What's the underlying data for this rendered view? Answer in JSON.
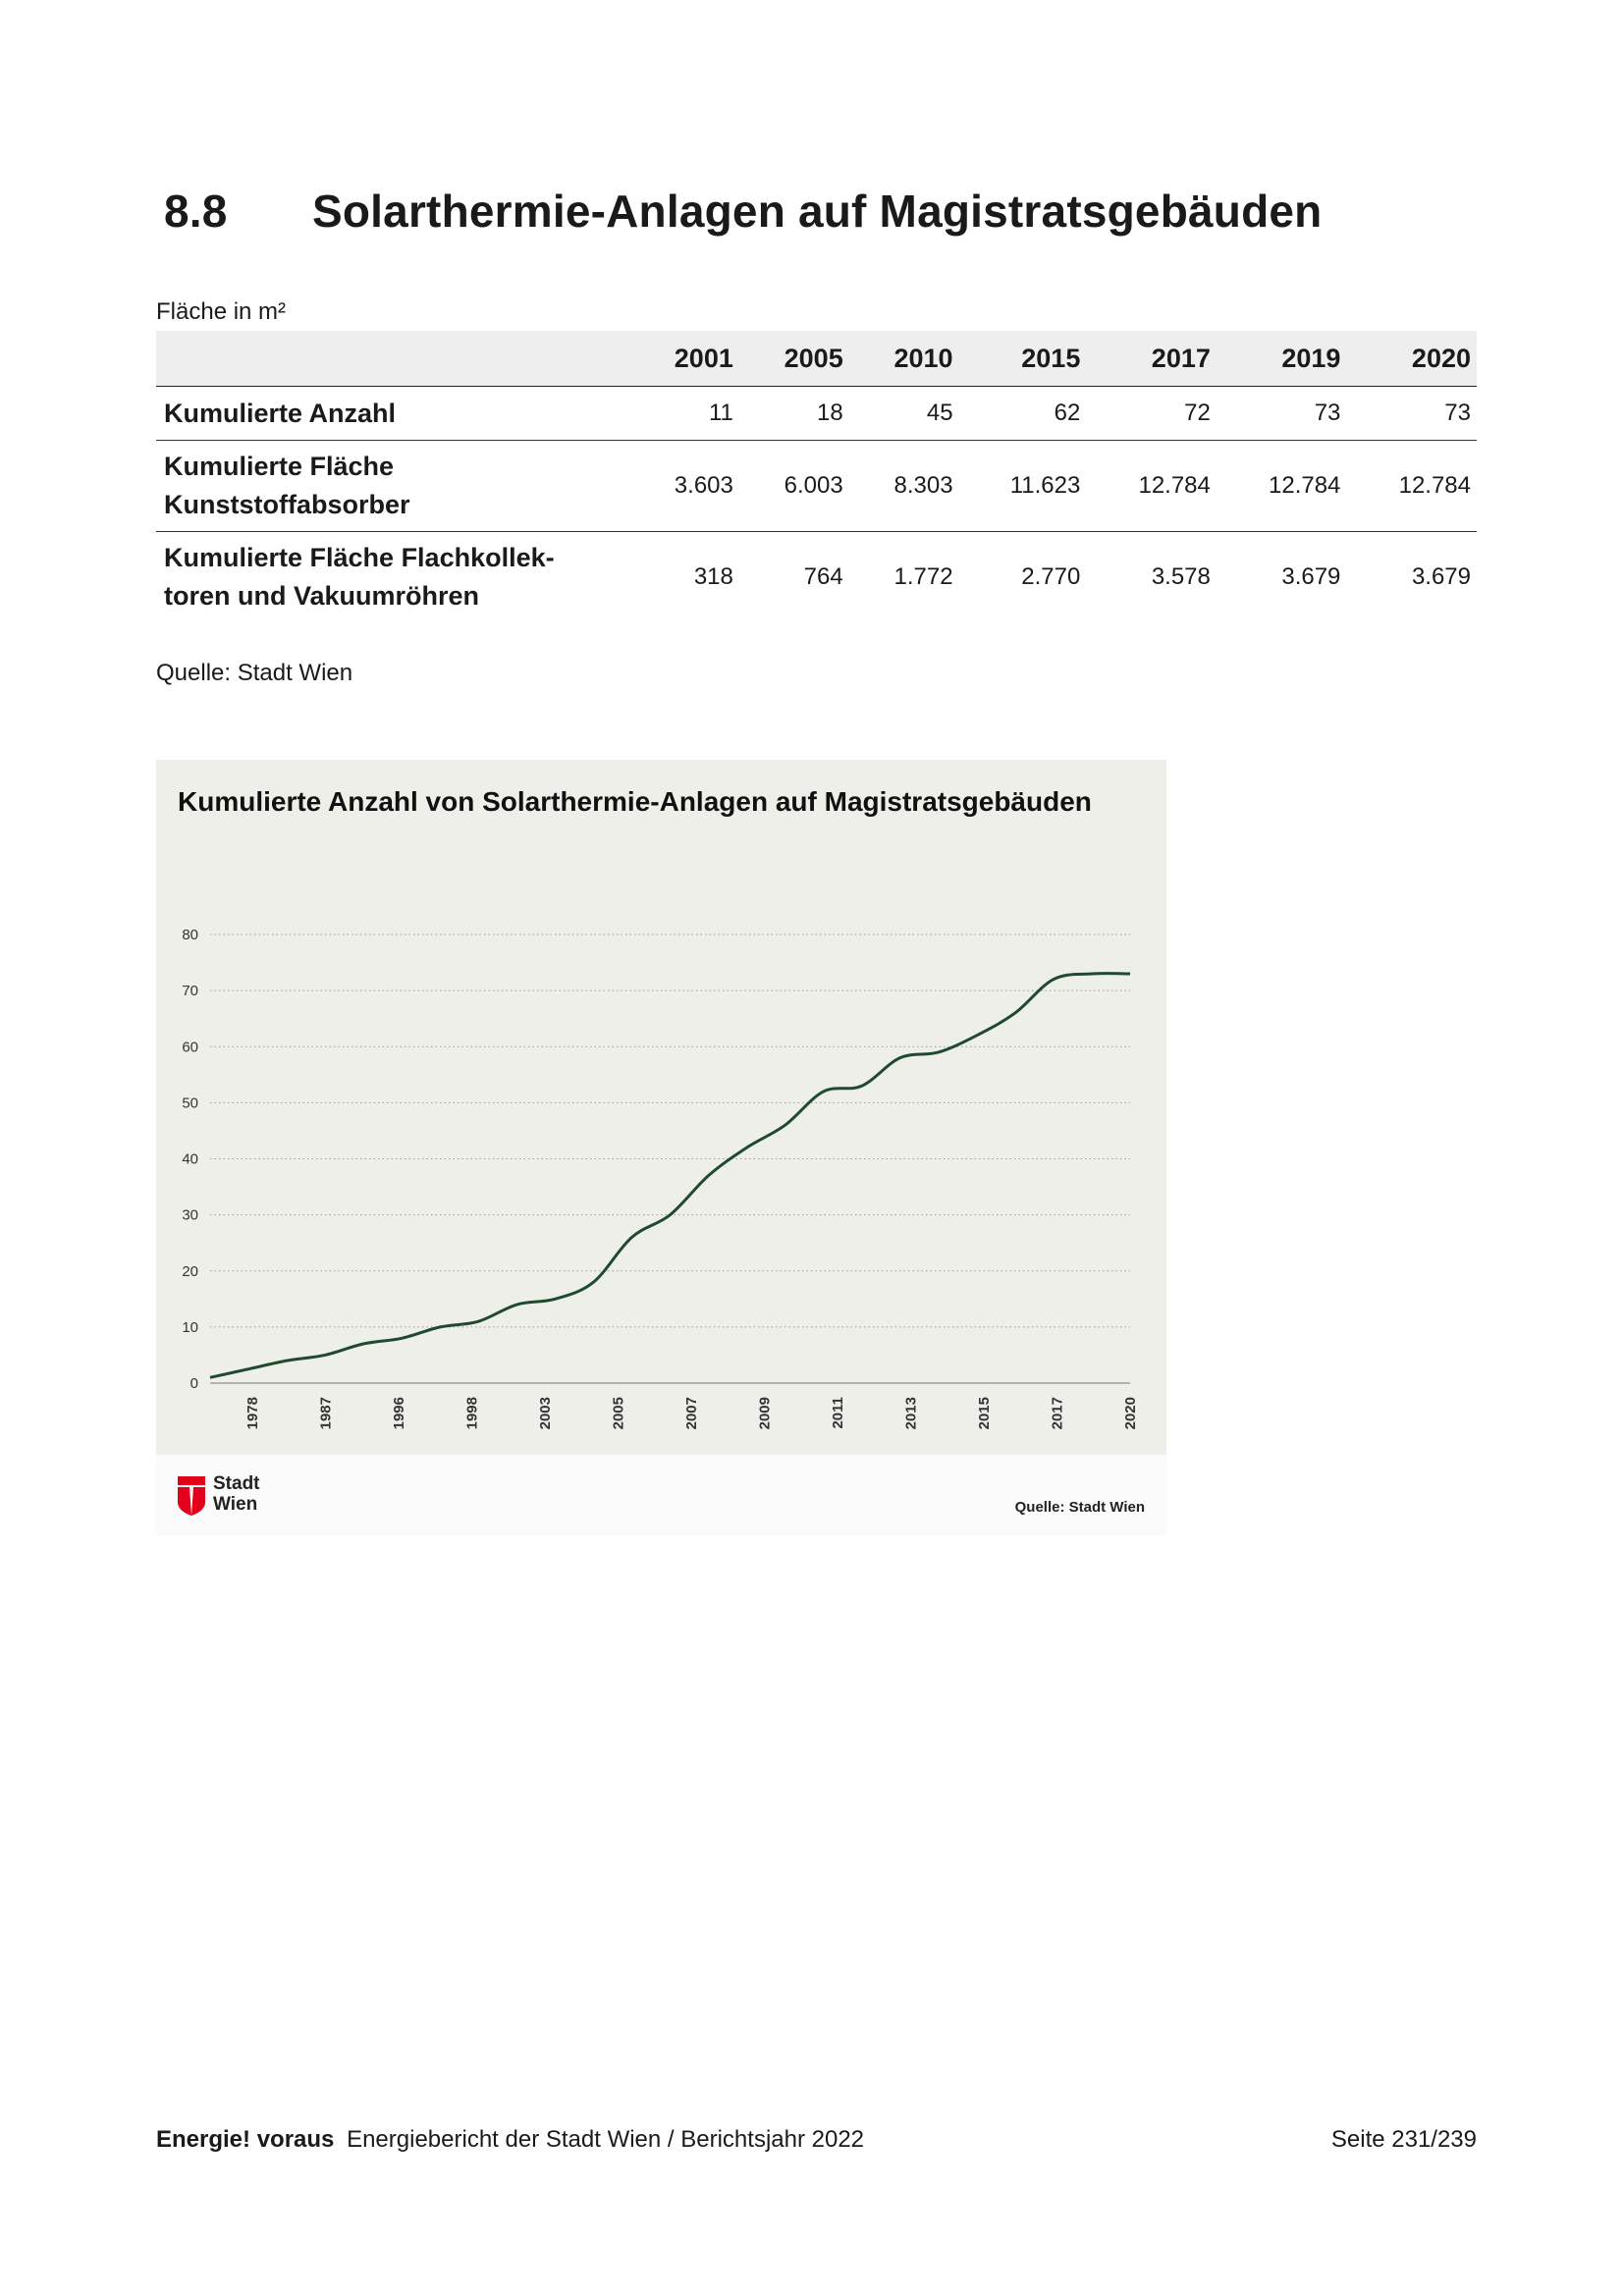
{
  "heading": {
    "number": "8.8",
    "title": "Solarthermie-Anlagen auf Magistratsgebäuden"
  },
  "table": {
    "unit_label": "Fläche in m²",
    "years": [
      "2001",
      "2005",
      "2010",
      "2015",
      "2017",
      "2019",
      "2020"
    ],
    "rows": [
      {
        "label": "Kumulierte Anzahl",
        "values": [
          "11",
          "18",
          "45",
          "62",
          "72",
          "73",
          "73"
        ]
      },
      {
        "label_lines": [
          "Kumulierte Fläche",
          "Kunststoffabsorber"
        ],
        "values": [
          "3.603",
          "6.003",
          "8.303",
          "11.623",
          "12.784",
          "12.784",
          "12.784"
        ]
      },
      {
        "label_lines": [
          "Kumulierte Fläche Flachkollek-",
          "toren und Vakuumröhren"
        ],
        "values": [
          "318",
          "764",
          "1.772",
          "2.770",
          "3.578",
          "3.679",
          "3.679"
        ]
      }
    ],
    "source": "Quelle: Stadt Wien"
  },
  "chart_data": {
    "type": "line",
    "title": "Kumulierte Anzahl von Solarthermie-Anlagen auf Magistratsgebäuden",
    "xlabel": "",
    "ylabel": "",
    "ylim": [
      0,
      80
    ],
    "yticks": [
      0,
      10,
      20,
      30,
      40,
      50,
      60,
      70,
      80
    ],
    "grid": true,
    "x_tick_labels": [
      "1978",
      "1987",
      "1996",
      "1998",
      "2003",
      "2005",
      "2007",
      "2009",
      "2011",
      "2013",
      "2015",
      "2017",
      "2020"
    ],
    "series": [
      {
        "name": "Kumulierte Anzahl",
        "color": "#1f4a2e",
        "values": [
          1,
          2.5,
          4,
          5,
          7,
          8,
          10,
          11,
          14,
          15,
          18,
          26,
          30,
          37,
          42,
          46,
          52,
          53,
          58,
          59,
          62,
          66,
          72,
          73,
          73
        ]
      }
    ],
    "source": "Quelle: Stadt Wien",
    "logo_text": [
      "Stadt",
      "Wien"
    ]
  },
  "footer": {
    "brand": "Energie! voraus",
    "text": "Energiebericht der Stadt Wien / Berichtsjahr 2022",
    "page": "Seite 231/239"
  }
}
